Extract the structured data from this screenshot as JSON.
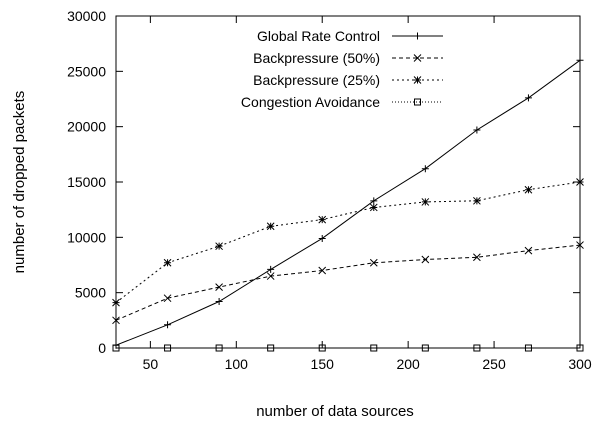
{
  "chart_data": {
    "type": "line",
    "xlabel": "number of data sources",
    "ylabel": "number of dropped packets",
    "xlim": [
      30,
      300
    ],
    "ylim": [
      0,
      30000
    ],
    "xticks": [
      50,
      100,
      150,
      200,
      250,
      300
    ],
    "yticks": [
      0,
      5000,
      10000,
      15000,
      20000,
      25000,
      30000
    ],
    "legend_position": "top-right",
    "grid": false,
    "x": [
      30,
      60,
      90,
      120,
      150,
      180,
      210,
      240,
      270,
      300
    ],
    "series": [
      {
        "name": "Global Rate Control",
        "marker": "plus",
        "line": "solid",
        "values": [
          250,
          2100,
          4200,
          7100,
          9900,
          13300,
          16200,
          19700,
          22600,
          26000
        ]
      },
      {
        "name": "Backpressure (50%)",
        "marker": "cross",
        "line": "dashed",
        "values": [
          2500,
          4500,
          5500,
          6500,
          7000,
          7700,
          8000,
          8200,
          8800,
          9300
        ]
      },
      {
        "name": "Backpressure (25%)",
        "marker": "star",
        "line": "dotted",
        "values": [
          4100,
          7700,
          9200,
          11000,
          11600,
          12700,
          13200,
          13300,
          14300,
          15000
        ]
      },
      {
        "name": "Congestion Avoidance",
        "marker": "square",
        "line": "densely-dotted",
        "values": [
          0,
          0,
          0,
          0,
          0,
          0,
          0,
          0,
          0,
          0
        ]
      }
    ]
  }
}
